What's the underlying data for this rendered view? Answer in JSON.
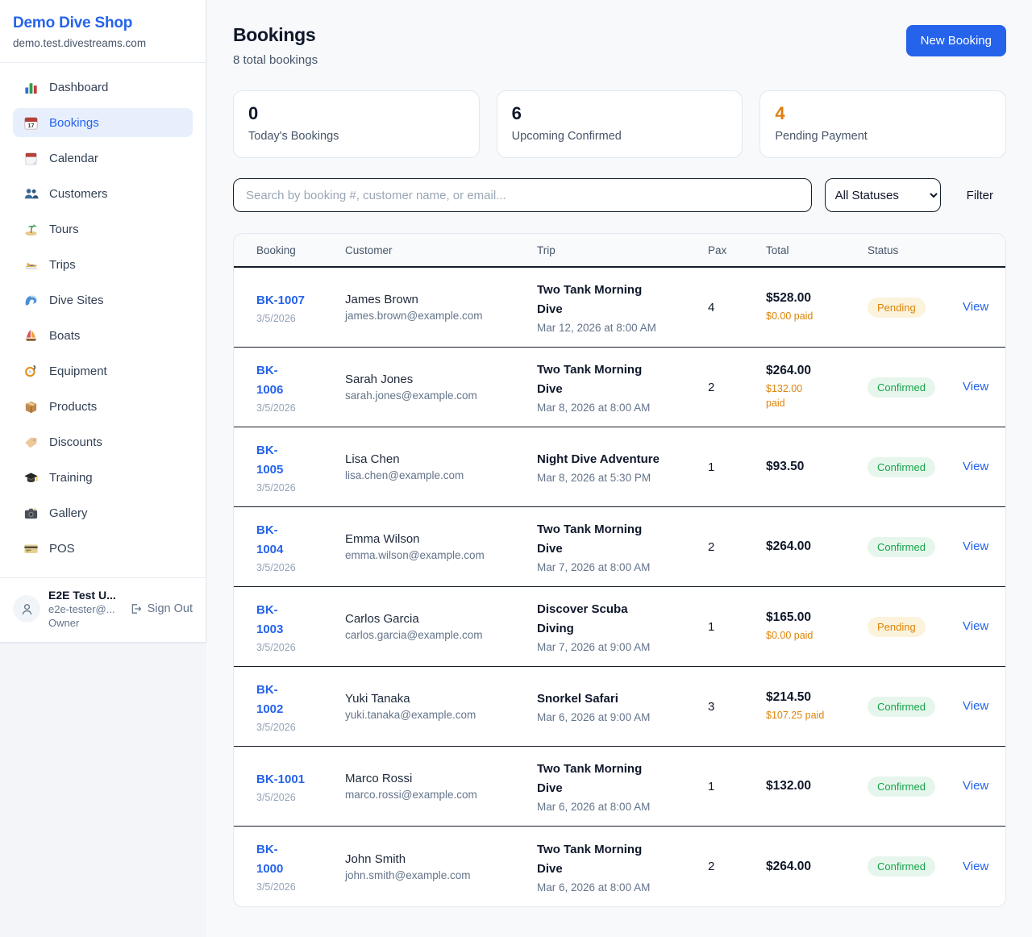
{
  "sidebar": {
    "shop_name": "Demo Dive Shop",
    "shop_domain": "demo.test.divestreams.com",
    "items": [
      {
        "label": "Dashboard",
        "icon": "bar-chart-icon",
        "active": false
      },
      {
        "label": "Bookings",
        "icon": "calendar-icon",
        "active": true
      },
      {
        "label": "Calendar",
        "icon": "tear-calendar-icon",
        "active": false
      },
      {
        "label": "Customers",
        "icon": "people-icon",
        "active": false
      },
      {
        "label": "Tours",
        "icon": "island-icon",
        "active": false
      },
      {
        "label": "Trips",
        "icon": "speedboat-icon",
        "active": false
      },
      {
        "label": "Dive Sites",
        "icon": "wave-icon",
        "active": false
      },
      {
        "label": "Boats",
        "icon": "sailboat-icon",
        "active": false
      },
      {
        "label": "Equipment",
        "icon": "diving-mask-icon",
        "active": false
      },
      {
        "label": "Products",
        "icon": "package-icon",
        "active": false
      },
      {
        "label": "Discounts",
        "icon": "label-tag-icon",
        "active": false
      },
      {
        "label": "Training",
        "icon": "graduation-cap-icon",
        "active": false
      },
      {
        "label": "Gallery",
        "icon": "camera-icon",
        "active": false
      },
      {
        "label": "POS",
        "icon": "credit-card-icon",
        "active": false
      }
    ],
    "user": {
      "name": "E2E Test U...",
      "email": "e2e-tester@...",
      "role": "Owner",
      "sign_out_label": "Sign Out"
    }
  },
  "header": {
    "title": "Bookings",
    "subtitle": "8 total bookings",
    "new_booking_label": "New Booking"
  },
  "stats": [
    {
      "value": "0",
      "label": "Today's Bookings",
      "accent": "dark"
    },
    {
      "value": "6",
      "label": "Upcoming Confirmed",
      "accent": "dark"
    },
    {
      "value": "4",
      "label": "Pending Payment",
      "accent": "orange"
    }
  ],
  "filters": {
    "search_placeholder": "Search by booking #, customer name, or email...",
    "status_selected": "All Statuses",
    "filter_label": "Filter"
  },
  "table": {
    "columns": [
      "Booking",
      "Customer",
      "Trip",
      "Pax",
      "Total",
      "Status",
      ""
    ],
    "rows": [
      {
        "booking_id": "BK-1007",
        "booking_date": "3/5/2026",
        "customer_name": "James Brown",
        "customer_email": "james.brown@example.com",
        "trip_name": "Two Tank Morning\nDive",
        "trip_datetime": "Mar 12, 2026 at 8:00 AM",
        "pax": "4",
        "total": "$528.00",
        "paid": "$0.00 paid",
        "status": "Pending",
        "action": "View"
      },
      {
        "booking_id": "BK-\n1006",
        "booking_date": "3/5/2026",
        "customer_name": "Sarah Jones",
        "customer_email": "sarah.jones@example.com",
        "trip_name": "Two Tank Morning\nDive",
        "trip_datetime": "Mar 8, 2026 at 8:00 AM",
        "pax": "2",
        "total": "$264.00",
        "paid": "$132.00\npaid",
        "status": "Confirmed",
        "action": "View"
      },
      {
        "booking_id": "BK-\n1005",
        "booking_date": "3/5/2026",
        "customer_name": "Lisa Chen",
        "customer_email": "lisa.chen@example.com",
        "trip_name": "Night Dive Adventure",
        "trip_datetime": "Mar 8, 2026 at 5:30 PM",
        "pax": "1",
        "total": "$93.50",
        "paid": "",
        "status": "Confirmed",
        "action": "View"
      },
      {
        "booking_id": "BK-\n1004",
        "booking_date": "3/5/2026",
        "customer_name": "Emma Wilson",
        "customer_email": "emma.wilson@example.com",
        "trip_name": "Two Tank Morning\nDive",
        "trip_datetime": "Mar 7, 2026 at 8:00 AM",
        "pax": "2",
        "total": "$264.00",
        "paid": "",
        "status": "Confirmed",
        "action": "View"
      },
      {
        "booking_id": "BK-\n1003",
        "booking_date": "3/5/2026",
        "customer_name": "Carlos Garcia",
        "customer_email": "carlos.garcia@example.com",
        "trip_name": "Discover Scuba\nDiving",
        "trip_datetime": "Mar 7, 2026 at 9:00 AM",
        "pax": "1",
        "total": "$165.00",
        "paid": "$0.00 paid",
        "status": "Pending",
        "action": "View"
      },
      {
        "booking_id": "BK-\n1002",
        "booking_date": "3/5/2026",
        "customer_name": "Yuki Tanaka",
        "customer_email": "yuki.tanaka@example.com",
        "trip_name": "Snorkel Safari",
        "trip_datetime": "Mar 6, 2026 at 9:00 AM",
        "pax": "3",
        "total": "$214.50",
        "paid": "$107.25 paid",
        "status": "Confirmed",
        "action": "View"
      },
      {
        "booking_id": "BK-1001",
        "booking_date": "3/5/2026",
        "customer_name": "Marco Rossi",
        "customer_email": "marco.rossi@example.com",
        "trip_name": "Two Tank Morning\nDive",
        "trip_datetime": "Mar 6, 2026 at 8:00 AM",
        "pax": "1",
        "total": "$132.00",
        "paid": "",
        "status": "Confirmed",
        "action": "View"
      },
      {
        "booking_id": "BK-\n1000",
        "booking_date": "3/5/2026",
        "customer_name": "John Smith",
        "customer_email": "john.smith@example.com",
        "trip_name": "Two Tank Morning\nDive",
        "trip_datetime": "Mar 6, 2026 at 8:00 AM",
        "pax": "2",
        "total": "$264.00",
        "paid": "",
        "status": "Confirmed",
        "action": "View"
      }
    ]
  },
  "colors": {
    "accent_blue": "#2563eb",
    "pending_text": "#dd8408",
    "pending_bg": "#fcf3dc",
    "confirmed_text": "#16a34a",
    "confirmed_bg": "#e7f6ec",
    "paid_orange": "#dd8408",
    "stat_orange": "#e07c0e"
  }
}
